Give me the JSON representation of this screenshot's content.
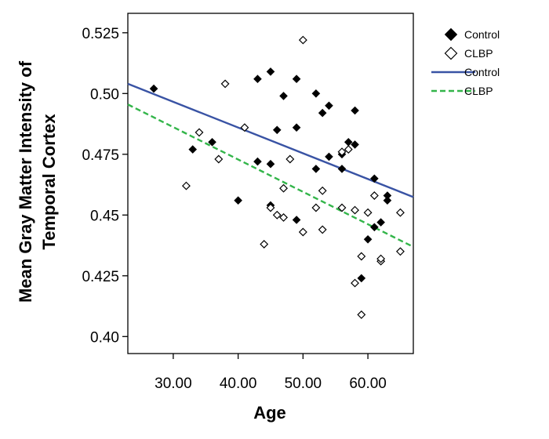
{
  "chart_data": {
    "type": "scatter",
    "title": "",
    "xlabel": "Age",
    "ylabel": [
      "Mean Gray Matter Intensity of",
      "Temporal Cortex"
    ],
    "xlim": [
      23,
      67
    ],
    "ylim": [
      0.393,
      0.533
    ],
    "x_ticks": [
      30,
      40,
      50,
      60
    ],
    "x_tick_labels": [
      "30.00",
      "40.00",
      "50.00",
      "60.00"
    ],
    "y_ticks": [
      0.4,
      0.425,
      0.45,
      0.475,
      0.5,
      0.525
    ],
    "y_tick_labels": [
      "0.40",
      "0.425",
      "0.45",
      "0.475",
      "0.50",
      "0.525"
    ],
    "grid": false,
    "legend_position": "right",
    "series": [
      {
        "name": "Control",
        "marker": "filled-diamond",
        "color": "#000000",
        "points": [
          [
            27,
            0.502
          ],
          [
            33,
            0.477
          ],
          [
            36,
            0.48
          ],
          [
            40,
            0.456
          ],
          [
            43,
            0.472
          ],
          [
            43,
            0.506
          ],
          [
            45,
            0.509
          ],
          [
            45,
            0.471
          ],
          [
            45,
            0.454
          ],
          [
            46,
            0.485
          ],
          [
            47,
            0.499
          ],
          [
            49,
            0.506
          ],
          [
            49,
            0.486
          ],
          [
            49,
            0.448
          ],
          [
            52,
            0.5
          ],
          [
            52,
            0.469
          ],
          [
            53,
            0.492
          ],
          [
            54,
            0.495
          ],
          [
            54,
            0.474
          ],
          [
            56,
            0.475
          ],
          [
            56,
            0.469
          ],
          [
            57,
            0.48
          ],
          [
            58,
            0.493
          ],
          [
            58,
            0.479
          ],
          [
            59,
            0.424
          ],
          [
            60,
            0.44
          ],
          [
            61,
            0.465
          ],
          [
            61,
            0.445
          ],
          [
            62,
            0.447
          ],
          [
            63,
            0.458
          ],
          [
            63,
            0.456
          ]
        ]
      },
      {
        "name": "CLBP",
        "marker": "hollow-diamond",
        "color": "#000000",
        "points": [
          [
            32,
            0.462
          ],
          [
            34,
            0.484
          ],
          [
            37,
            0.473
          ],
          [
            38,
            0.504
          ],
          [
            41,
            0.486
          ],
          [
            44,
            0.438
          ],
          [
            45,
            0.453
          ],
          [
            46,
            0.45
          ],
          [
            47,
            0.461
          ],
          [
            47,
            0.449
          ],
          [
            48,
            0.473
          ],
          [
            50,
            0.522
          ],
          [
            50,
            0.443
          ],
          [
            52,
            0.453
          ],
          [
            53,
            0.46
          ],
          [
            53,
            0.444
          ],
          [
            56,
            0.476
          ],
          [
            56,
            0.453
          ],
          [
            57,
            0.477
          ],
          [
            58,
            0.452
          ],
          [
            58,
            0.422
          ],
          [
            59,
            0.433
          ],
          [
            59,
            0.409
          ],
          [
            60,
            0.451
          ],
          [
            61,
            0.458
          ],
          [
            62,
            0.431
          ],
          [
            62,
            0.432
          ],
          [
            65,
            0.451
          ],
          [
            65,
            0.435
          ]
        ]
      }
    ],
    "fit_lines": [
      {
        "name": "Control",
        "color": "#3953a4",
        "style": "solid",
        "x": [
          23,
          67
        ],
        "y": [
          0.504,
          0.4574
        ]
      },
      {
        "name": "CLBP",
        "color": "#33b54a",
        "style": "dashed",
        "x": [
          23,
          67
        ],
        "y": [
          0.4955,
          0.4369
        ]
      }
    ]
  },
  "legend": [
    {
      "label": "Control",
      "kind": "filled-diamond"
    },
    {
      "label": "CLBP",
      "kind": "hollow-diamond"
    },
    {
      "label": "Control",
      "kind": "solid-line",
      "color": "#3953a4"
    },
    {
      "label": "CLBP",
      "kind": "dashed-line",
      "color": "#33b54a"
    }
  ]
}
